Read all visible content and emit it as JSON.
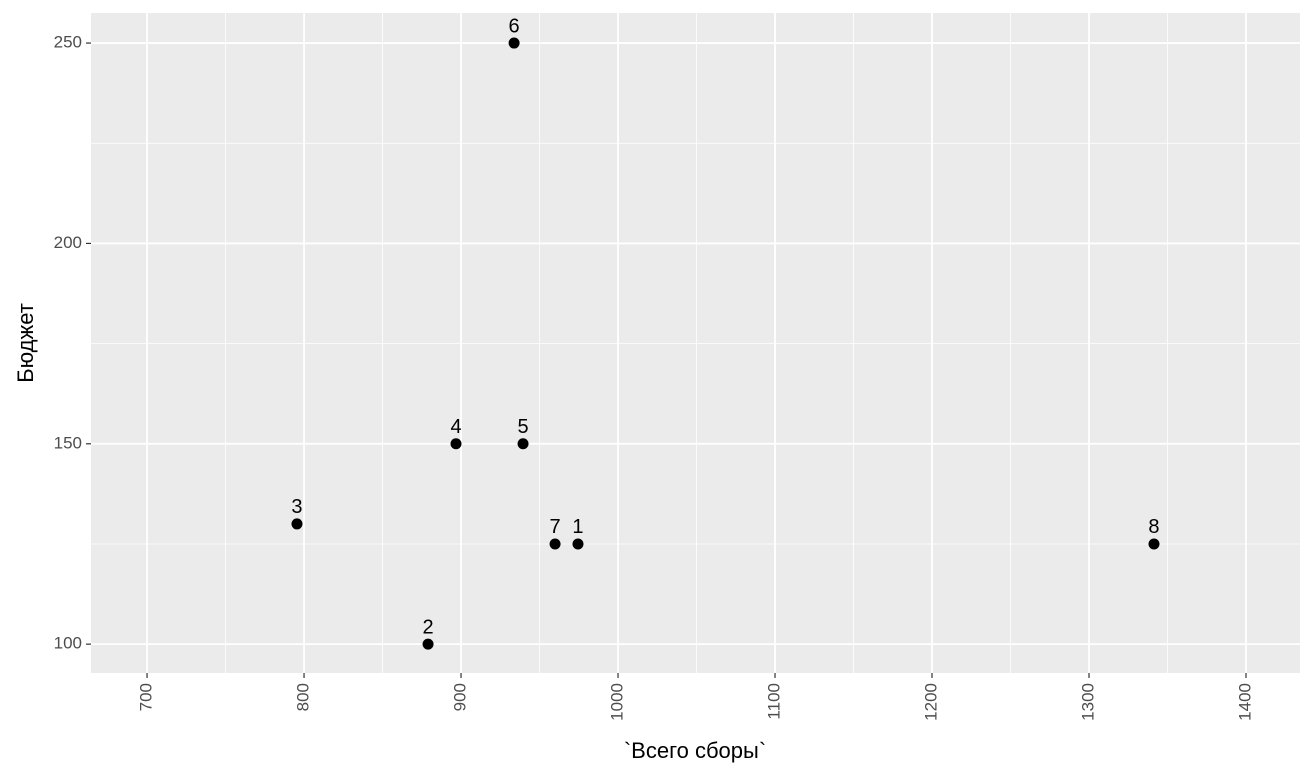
{
  "chart_data": {
    "type": "scatter",
    "x_label": "`Всего сборы`",
    "y_label": "Бюджет",
    "x": [
      974.5,
      879,
      795.5,
      896.8,
      939.5,
      933.8,
      959.9,
      1341.4
    ],
    "values": [
      125,
      100,
      130,
      150,
      150,
      250,
      125,
      125
    ],
    "labels": [
      "1",
      "2",
      "3",
      "4",
      "5",
      "6",
      "7",
      "8"
    ],
    "color": "#000000",
    "xlim": [
      664.3,
      1434.4
    ],
    "ylim": [
      92.8,
      257.5
    ],
    "xticks": [
      700,
      800,
      900,
      1000,
      1100,
      1200,
      1300,
      1400
    ],
    "yticks": [
      100,
      150,
      200,
      250
    ],
    "x_minor_breaks": [
      750,
      850,
      950,
      1050,
      1150,
      1250,
      1350
    ],
    "y_minor_breaks": [
      125,
      175,
      225
    ],
    "grid": true
  }
}
